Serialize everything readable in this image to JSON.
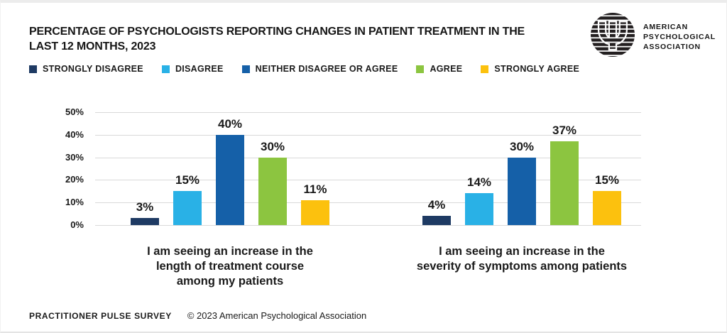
{
  "header": {
    "title_lines": [
      "PERCENTAGE OF PSYCHOLOGISTS REPORTING CHANGES IN PATIENT TREATMENT IN THE",
      "LAST 12 MONTHS, 2023"
    ],
    "logo": {
      "text_lines": [
        "AMERICAN",
        "PSYCHOLOGICAL",
        "ASSOCIATION"
      ],
      "color": "#161616"
    }
  },
  "legend": [
    {
      "label": "STRONGLY DISAGREE",
      "color": "#1e3a63"
    },
    {
      "label": "DISAGREE",
      "color": "#29b1e6"
    },
    {
      "label": "NEITHER DISAGREE OR AGREE",
      "color": "#1560a8"
    },
    {
      "label": "AGREE",
      "color": "#8cc540"
    },
    {
      "label": "STRONGLY AGREE",
      "color": "#fcc10e"
    }
  ],
  "chart_data": {
    "type": "bar",
    "title": "Percentage of psychologists reporting changes in patient treatment in the last 12 months, 2023",
    "categories": [
      "I am seeing an increase in the length of treatment course among my patients",
      "I am seeing an increase in the severity of symptoms among patients"
    ],
    "category_lines": [
      [
        "I am seeing an increase in the",
        "length of treatment course",
        "among my patients"
      ],
      [
        "I am seeing an increase in the",
        "severity of symptoms among patients"
      ]
    ],
    "series": [
      {
        "name": "Strongly Disagree",
        "color": "#1e3a63",
        "values": [
          3,
          4
        ]
      },
      {
        "name": "Disagree",
        "color": "#29b1e6",
        "values": [
          15,
          14
        ]
      },
      {
        "name": "Neither Disagree or Agree",
        "color": "#1560a8",
        "values": [
          40,
          30
        ]
      },
      {
        "name": "Agree",
        "color": "#8cc540",
        "values": [
          30,
          37
        ]
      },
      {
        "name": "Strongly Agree",
        "color": "#fcc10e",
        "values": [
          11,
          15
        ]
      }
    ],
    "value_suffix": "%",
    "ylim": [
      0,
      50
    ],
    "yticks": [
      "50%",
      "40%",
      "30%",
      "20%",
      "10%",
      "0%"
    ],
    "grid": true,
    "legend_position": "top"
  },
  "footer": {
    "survey_label": "PRACTITIONER PULSE SURVEY",
    "copyright": "© 2023 American Psychological Association"
  }
}
